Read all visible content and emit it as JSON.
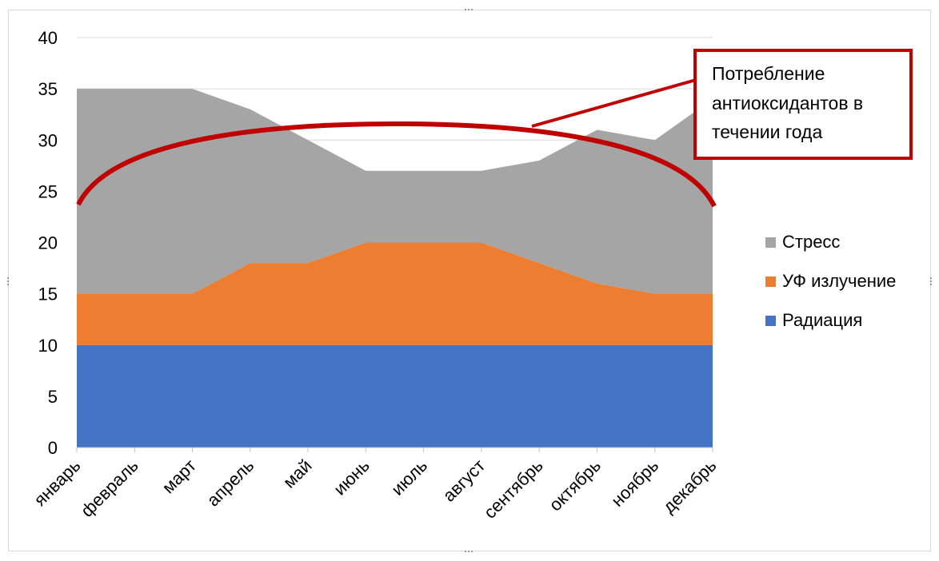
{
  "chart_data": {
    "type": "area",
    "stacked": true,
    "categories": [
      "январь",
      "февраль",
      "март",
      "апрель",
      "май",
      "июнь",
      "июль",
      "август",
      "сентябрь",
      "октябрь",
      "ноябрь",
      "декабрь"
    ],
    "series": [
      {
        "name": "Радиация",
        "color": "#4472c4",
        "values": [
          10,
          10,
          10,
          10,
          10,
          10,
          10,
          10,
          10,
          10,
          10,
          10
        ]
      },
      {
        "name": "УФ излучение",
        "color": "#ed7d31",
        "values": [
          5,
          5,
          5,
          8,
          8,
          10,
          10,
          10,
          8,
          6,
          5,
          5
        ]
      },
      {
        "name": "Стресс",
        "color": "#a5a5a5",
        "values": [
          20,
          20,
          20,
          15,
          12,
          7,
          7,
          7,
          10,
          15,
          15,
          19
        ]
      }
    ],
    "ylim": [
      0,
      40
    ],
    "yticks": [
      "0",
      "5",
      "10",
      "15",
      "20",
      "25",
      "30",
      "35",
      "40"
    ],
    "grid": true,
    "legend_position": "right",
    "legend_order": [
      "Стресс",
      "УФ излучение",
      "Радиация"
    ],
    "annotation": {
      "lines": [
        "Потребление",
        "антиоксидантов в",
        "течении года"
      ],
      "color": "#c00000"
    }
  }
}
